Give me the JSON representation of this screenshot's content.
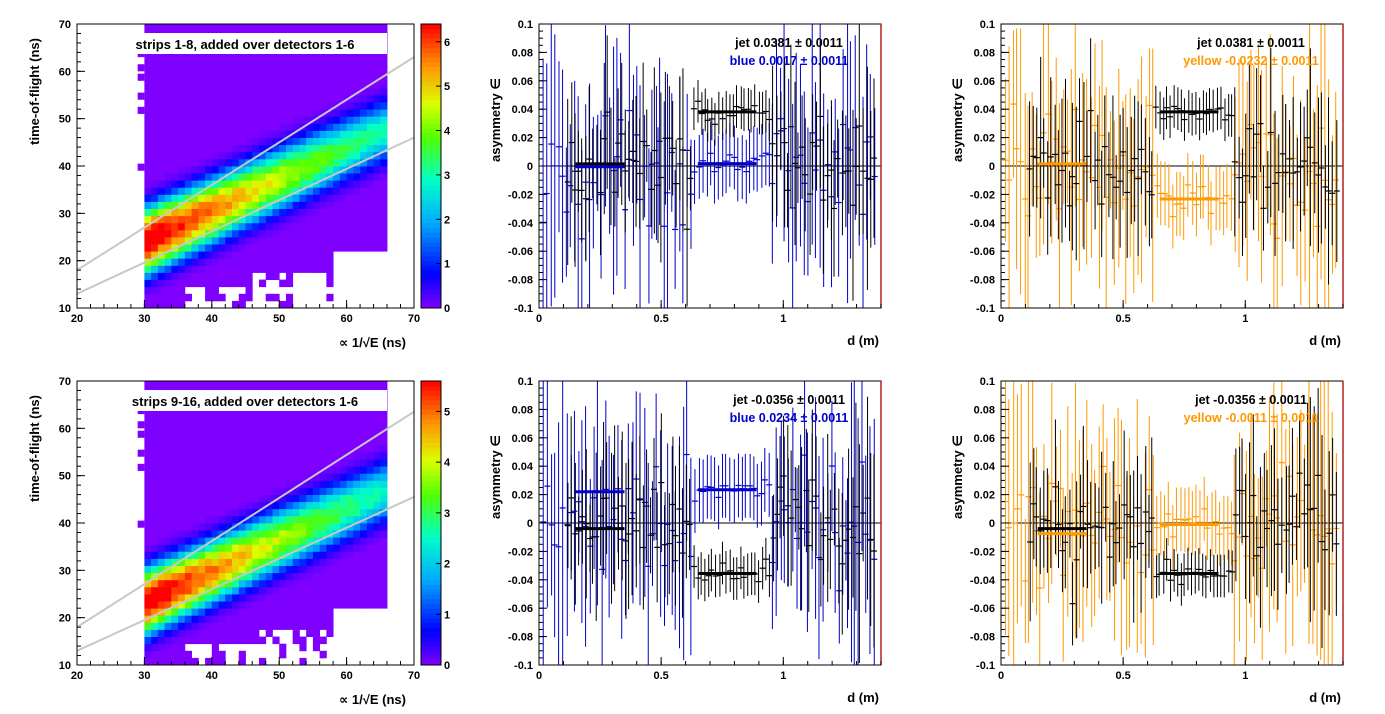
{
  "colors": {
    "frame": "#000000",
    "panel_border": "#b22222",
    "fit_line": "#c8c8c8",
    "jet": "#000000",
    "blue": "#0000cc",
    "yellow": "#ff9900",
    "heatmap_floor": "#7f00ff"
  },
  "chart_data": [
    {
      "type": "heatmap",
      "title": "strips 1-8, added over detectors 1-6",
      "xlabel": "∝ 1/√E (ns)",
      "ylabel": "time-of-flight (ns)",
      "xlim": [
        20,
        70
      ],
      "ylim": [
        10,
        70
      ],
      "xticks": [
        "20",
        "30",
        "40",
        "50",
        "60",
        "70"
      ],
      "yticks": [
        "10",
        "20",
        "30",
        "40",
        "50",
        "60",
        "70"
      ],
      "colorbar_ticks": [
        "0",
        "1",
        "2",
        "3",
        "4",
        "5",
        "6"
      ],
      "colorbar_range": [
        0,
        6.4
      ],
      "cell": [
        1,
        1.5
      ],
      "distribution": {
        "x_range": [
          30,
          66
        ],
        "y_range": [
          10,
          70
        ],
        "peak": [
          34,
          26
        ],
        "band_intercept": 4.2,
        "band_slope": 0.66,
        "band_width": 3.5,
        "falloff": 22
      },
      "fit_lines": [
        {
          "x": [
            20,
            70
          ],
          "y": [
            18.0,
            63.0
          ]
        },
        {
          "x": [
            20,
            70
          ],
          "y": [
            13.0,
            46.0
          ]
        }
      ]
    },
    {
      "type": "scatter",
      "xlabel": "d (m)",
      "ylabel": "asymmetry ∈",
      "xlim": [
        0,
        1.4
      ],
      "ylim": [
        -0.1,
        0.1
      ],
      "xticks": [
        {
          "v": 0,
          "l": "0"
        },
        {
          "v": 0.5,
          "l": "0.5"
        },
        {
          "v": 1,
          "l": "1"
        }
      ],
      "yticks": [
        "-0.1",
        "-0.08",
        "-0.06",
        "-0.04",
        "-0.02",
        "0",
        "0.02",
        "0.04",
        "0.06",
        "0.08",
        "0.1"
      ],
      "legend": [
        {
          "text": "jet  0.0381 ± 0.0011",
          "color": "#000000"
        },
        {
          "text": "blue  0.0017 ± 0.0011",
          "color": "#0000cc"
        }
      ],
      "series": [
        {
          "name": "jet",
          "color": "#000000",
          "n": 86,
          "x0": 0.11,
          "x1": 1.38,
          "edge": [
            0.35,
            0.65
          ],
          "signal": 0.038,
          "scatter": 0.015,
          "err_min": 0.01,
          "err_max": 0.06,
          "seed": 11
        },
        {
          "name": "blue",
          "color": "#0000cc",
          "n": 86,
          "x0": 0.01,
          "x1": 1.38,
          "edge": [
            0.35,
            0.65
          ],
          "signal": 0.002,
          "scatter": 0.02,
          "err_min": 0.015,
          "err_max": 0.09,
          "seed": 12
        }
      ],
      "fits": [
        {
          "color": "#000000",
          "x": [
            0.15,
            0.35
          ],
          "y": 0.0015
        },
        {
          "color": "#000000",
          "x": [
            0.65,
            0.89
          ],
          "y": 0.0381
        },
        {
          "color": "#0000cc",
          "x": [
            0.15,
            0.35
          ],
          "y": -0.0005
        },
        {
          "color": "#0000cc",
          "x": [
            0.65,
            0.89
          ],
          "y": 0.0017
        }
      ]
    },
    {
      "type": "scatter",
      "xlabel": "d (m)",
      "ylabel": "asymmetry ∈",
      "xlim": [
        0,
        1.4
      ],
      "ylim": [
        -0.1,
        0.1
      ],
      "xticks": [
        {
          "v": 0,
          "l": "0"
        },
        {
          "v": 0.5,
          "l": "0.5"
        },
        {
          "v": 1,
          "l": "1"
        }
      ],
      "yticks": [
        "-0.1",
        "-0.08",
        "-0.06",
        "-0.04",
        "-0.02",
        "0",
        "0.02",
        "0.04",
        "0.06",
        "0.08",
        "0.1"
      ],
      "legend": [
        {
          "text": "jet  0.0381 ± 0.0011",
          "color": "#000000"
        },
        {
          "text": "yellow -0.0232 ± 0.0011",
          "color": "#ff9900"
        }
      ],
      "series": [
        {
          "name": "jet",
          "color": "#000000",
          "n": 86,
          "x0": 0.11,
          "x1": 1.38,
          "edge": [
            0.35,
            0.65
          ],
          "signal": 0.038,
          "scatter": 0.015,
          "err_min": 0.01,
          "err_max": 0.06,
          "seed": 21
        },
        {
          "name": "yellow",
          "color": "#ff9900",
          "n": 86,
          "x0": 0.01,
          "x1": 1.38,
          "edge": [
            0.35,
            0.65
          ],
          "signal": -0.023,
          "scatter": 0.02,
          "err_min": 0.015,
          "err_max": 0.09,
          "seed": 22
        }
      ],
      "fits": [
        {
          "color": "#000000",
          "x": [
            0.65,
            0.89
          ],
          "y": 0.0381
        },
        {
          "color": "#ff9900",
          "x": [
            0.15,
            0.35
          ],
          "y": 0.0015
        },
        {
          "color": "#ff9900",
          "x": [
            0.65,
            0.89
          ],
          "y": -0.0232
        }
      ]
    },
    {
      "type": "heatmap",
      "title": "strips 9-16, added over detectors 1-6",
      "xlabel": "∝ 1/√E (ns)",
      "ylabel": "time-of-flight (ns)",
      "xlim": [
        20,
        70
      ],
      "ylim": [
        10,
        70
      ],
      "xticks": [
        "20",
        "30",
        "40",
        "50",
        "60",
        "70"
      ],
      "yticks": [
        "10",
        "20",
        "30",
        "40",
        "50",
        "60",
        "70"
      ],
      "colorbar_ticks": [
        "0",
        "1",
        "2",
        "3",
        "4",
        "5"
      ],
      "colorbar_range": [
        0,
        5.6
      ],
      "cell": [
        1,
        1.5
      ],
      "distribution": {
        "x_range": [
          30,
          66
        ],
        "y_range": [
          10,
          70
        ],
        "peak": [
          34,
          25
        ],
        "band_intercept": 3.4,
        "band_slope": 0.66,
        "band_width": 3.5,
        "falloff": 22
      },
      "fit_lines": [
        {
          "x": [
            20,
            70
          ],
          "y": [
            18.0,
            63.5
          ]
        },
        {
          "x": [
            20,
            70
          ],
          "y": [
            13.0,
            45.5
          ]
        }
      ]
    },
    {
      "type": "scatter",
      "xlabel": "d (m)",
      "ylabel": "asymmetry ∈",
      "xlim": [
        0,
        1.4
      ],
      "ylim": [
        -0.1,
        0.1
      ],
      "xticks": [
        {
          "v": 0,
          "l": "0"
        },
        {
          "v": 0.5,
          "l": "0.5"
        },
        {
          "v": 1,
          "l": "1"
        }
      ],
      "yticks": [
        "-0.1",
        "-0.08",
        "-0.06",
        "-0.04",
        "-0.02",
        "0",
        "0.02",
        "0.04",
        "0.06",
        "0.08",
        "0.1"
      ],
      "legend": [
        {
          "text": "jet -0.0356 ± 0.0011",
          "color": "#000000"
        },
        {
          "text": "blue  0.0234 ± 0.0011",
          "color": "#0000cc"
        }
      ],
      "series": [
        {
          "name": "jet",
          "color": "#000000",
          "n": 86,
          "x0": 0.11,
          "x1": 1.38,
          "edge": [
            0.35,
            0.65
          ],
          "signal": -0.036,
          "scatter": 0.015,
          "err_min": 0.01,
          "err_max": 0.06,
          "seed": 31
        },
        {
          "name": "blue",
          "color": "#0000cc",
          "n": 86,
          "x0": 0.01,
          "x1": 1.38,
          "edge": [
            0.35,
            0.65
          ],
          "signal": 0.023,
          "scatter": 0.02,
          "err_min": 0.015,
          "err_max": 0.09,
          "seed": 32
        }
      ],
      "fits": [
        {
          "color": "#000000",
          "x": [
            0.15,
            0.35
          ],
          "y": -0.004
        },
        {
          "color": "#000000",
          "x": [
            0.65,
            0.89
          ],
          "y": -0.0356
        },
        {
          "color": "#0000cc",
          "x": [
            0.15,
            0.35
          ],
          "y": 0.022
        },
        {
          "color": "#0000cc",
          "x": [
            0.65,
            0.89
          ],
          "y": 0.0234
        }
      ]
    },
    {
      "type": "scatter",
      "xlabel": "d (m)",
      "ylabel": "asymmetry ∈",
      "xlim": [
        0,
        1.4
      ],
      "ylim": [
        -0.1,
        0.1
      ],
      "xticks": [
        {
          "v": 0,
          "l": "0"
        },
        {
          "v": 0.5,
          "l": "0.5"
        },
        {
          "v": 1,
          "l": "1"
        }
      ],
      "yticks": [
        "-0.1",
        "-0.08",
        "-0.06",
        "-0.04",
        "-0.02",
        "0",
        "0.02",
        "0.04",
        "0.06",
        "0.08",
        "0.1"
      ],
      "legend": [
        {
          "text": "jet -0.0356 ± 0.0011",
          "color": "#000000"
        },
        {
          "text": "yellow -0.0011 ± 0.0011",
          "color": "#ff9900"
        }
      ],
      "series": [
        {
          "name": "jet",
          "color": "#000000",
          "n": 86,
          "x0": 0.11,
          "x1": 1.38,
          "edge": [
            0.35,
            0.65
          ],
          "signal": -0.036,
          "scatter": 0.015,
          "err_min": 0.01,
          "err_max": 0.06,
          "seed": 41
        },
        {
          "name": "yellow",
          "color": "#ff9900",
          "n": 86,
          "x0": 0.01,
          "x1": 1.38,
          "edge": [
            0.35,
            0.65
          ],
          "signal": -0.001,
          "scatter": 0.02,
          "err_min": 0.015,
          "err_max": 0.09,
          "seed": 42
        }
      ],
      "fits": [
        {
          "color": "#000000",
          "x": [
            0.15,
            0.35
          ],
          "y": -0.004
        },
        {
          "color": "#000000",
          "x": [
            0.65,
            0.89
          ],
          "y": -0.0356
        },
        {
          "color": "#ff9900",
          "x": [
            0.15,
            0.35
          ],
          "y": -0.0075
        },
        {
          "color": "#ff9900",
          "x": [
            0.65,
            0.89
          ],
          "y": -0.0011
        }
      ]
    }
  ]
}
